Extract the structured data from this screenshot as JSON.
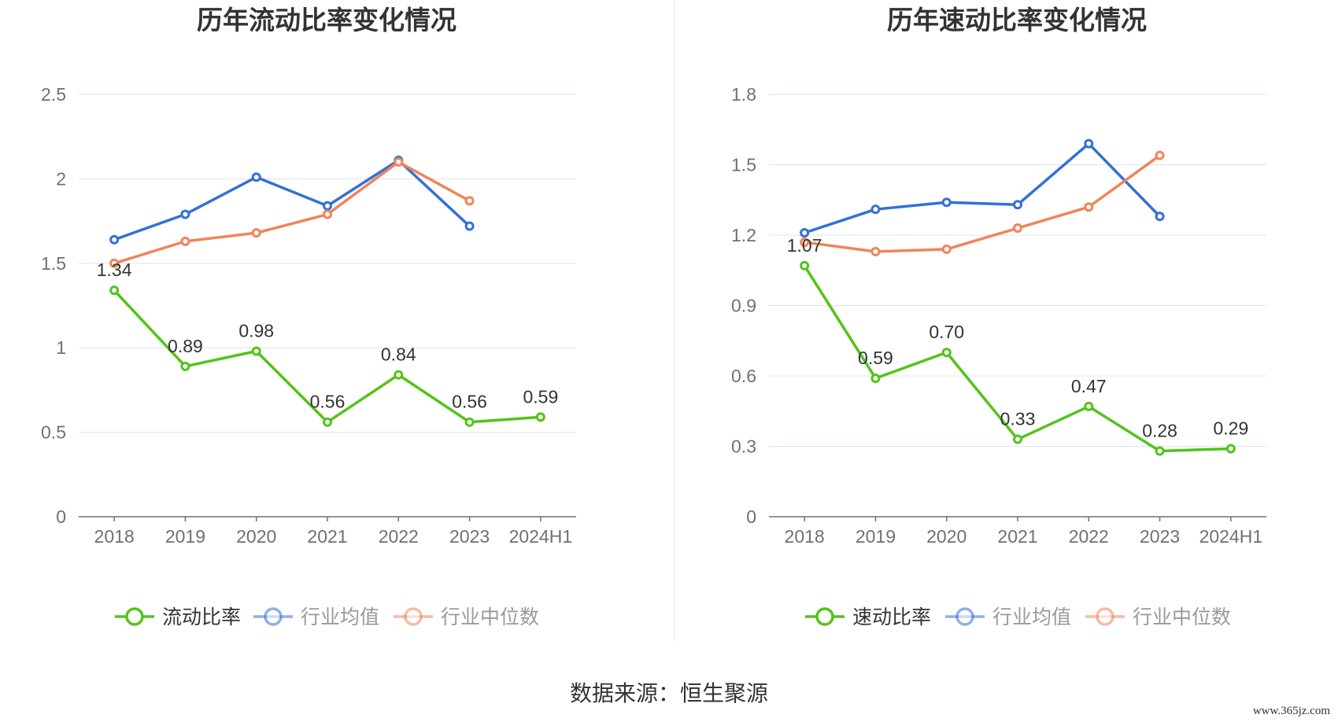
{
  "chart_data": [
    {
      "type": "line",
      "title": "历年流动比率变化情况",
      "categories": [
        "2018",
        "2019",
        "2020",
        "2021",
        "2022",
        "2023",
        "2024H1"
      ],
      "ylim": [
        0,
        2.5
      ],
      "yticks": [
        "0",
        "0.5",
        "1",
        "1.5",
        "2",
        "2.5"
      ],
      "grid": true,
      "legend_position": "bottom",
      "series": [
        {
          "name": "流动比率",
          "color": "#52c41a",
          "values": [
            1.34,
            0.89,
            0.98,
            0.56,
            0.84,
            0.56,
            0.59
          ],
          "labels": [
            "1.34",
            "0.89",
            "0.98",
            "0.56",
            "0.84",
            "0.56",
            "0.59"
          ]
        },
        {
          "name": "行业均值",
          "color": "#3370d8",
          "values": [
            1.64,
            1.79,
            2.01,
            1.84,
            2.11,
            1.72,
            null
          ]
        },
        {
          "name": "行业中位数",
          "color": "#f0845c",
          "values": [
            1.5,
            1.63,
            1.68,
            1.79,
            2.1,
            1.87,
            null
          ]
        }
      ]
    },
    {
      "type": "line",
      "title": "历年速动比率变化情况",
      "categories": [
        "2018",
        "2019",
        "2020",
        "2021",
        "2022",
        "2023",
        "2024H1"
      ],
      "ylim": [
        0,
        1.8
      ],
      "yticks": [
        "0",
        "0.3",
        "0.6",
        "0.9",
        "1.2",
        "1.5",
        "1.8"
      ],
      "grid": true,
      "legend_position": "bottom",
      "series": [
        {
          "name": "速动比率",
          "color": "#52c41a",
          "values": [
            1.07,
            0.59,
            0.7,
            0.33,
            0.47,
            0.28,
            0.29
          ],
          "labels": [
            "1.07",
            "0.59",
            "0.70",
            "0.33",
            "0.47",
            "0.28",
            "0.29"
          ]
        },
        {
          "name": "行业均值",
          "color": "#3370d8",
          "values": [
            1.21,
            1.31,
            1.34,
            1.33,
            1.59,
            1.28,
            null
          ]
        },
        {
          "name": "行业中位数",
          "color": "#f0845c",
          "values": [
            1.17,
            1.13,
            1.14,
            1.23,
            1.32,
            1.54,
            null
          ]
        }
      ]
    }
  ],
  "footer": {
    "source": "数据来源：恒生聚源",
    "watermark": "www.365jz.com"
  }
}
